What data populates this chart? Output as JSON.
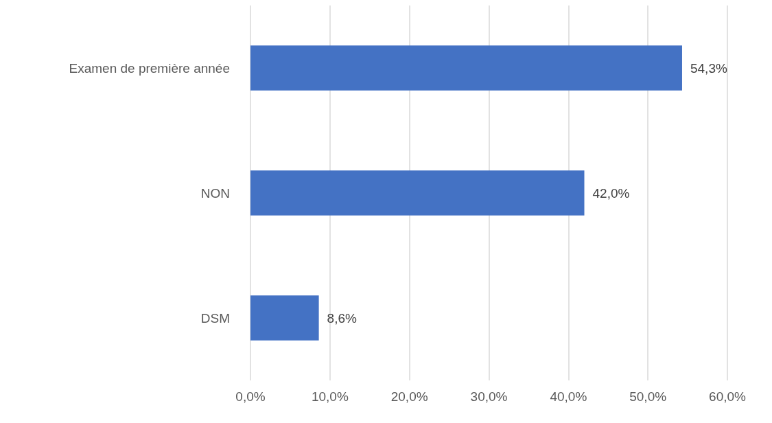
{
  "chart_data": {
    "type": "bar",
    "orientation": "horizontal",
    "categories": [
      "Examen de première année",
      "NON",
      "DSM"
    ],
    "values": [
      54.3,
      42.0,
      8.6
    ],
    "value_labels": [
      "54,3%",
      "42,0%",
      "8,6%"
    ],
    "color": "#4472c4",
    "xlim": [
      0,
      60
    ],
    "xticks": [
      {
        "value": 0,
        "label": "0,0%"
      },
      {
        "value": 10,
        "label": "10,0%"
      },
      {
        "value": 20,
        "label": "20,0%"
      },
      {
        "value": 30,
        "label": "30,0%"
      },
      {
        "value": 40,
        "label": "40,0%"
      },
      {
        "value": 50,
        "label": "50,0%"
      },
      {
        "value": 60,
        "label": "60,0%"
      }
    ],
    "grid": "x"
  }
}
